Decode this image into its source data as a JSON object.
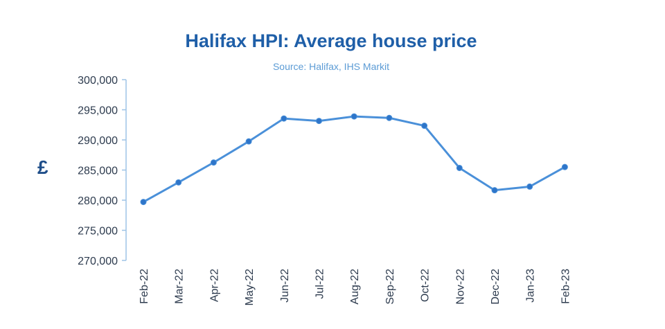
{
  "chart_data": {
    "type": "line",
    "title": "Halifax HPI: Average house price",
    "subtitle": "Source: Halifax, IHS Markit",
    "ylabel": "£",
    "xlabel": "",
    "ylim": [
      270000,
      300000
    ],
    "yticks": [
      270000,
      275000,
      280000,
      285000,
      290000,
      295000,
      300000
    ],
    "ytick_labels": [
      "270,000",
      "275,000",
      "280,000",
      "285,000",
      "290,000",
      "295,000",
      "300,000"
    ],
    "categories": [
      "Feb-22",
      "Mar-22",
      "Apr-22",
      "May-22",
      "Jun-22",
      "Jul-22",
      "Aug-22",
      "Sep-22",
      "Oct-22",
      "Nov-22",
      "Dec-22",
      "Jan-23",
      "Feb-23"
    ],
    "series": [
      {
        "values": [
          279700,
          282950,
          286250,
          289750,
          293550,
          293150,
          293900,
          293650,
          292350,
          285350,
          281650,
          282250,
          285500
        ],
        "color": "#4a90d9"
      }
    ],
    "grid": false,
    "legend": "none"
  }
}
